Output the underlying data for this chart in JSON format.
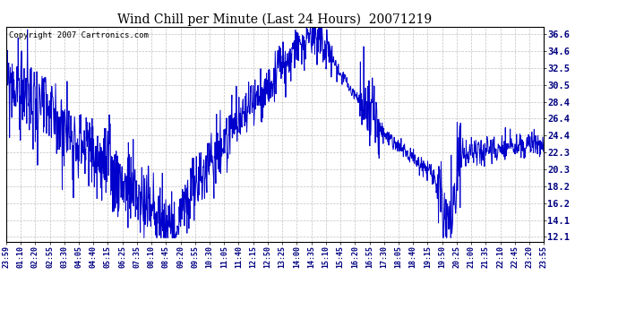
{
  "title": "Wind Chill per Minute (Last 24 Hours)  20071219",
  "copyright": "Copyright 2007 Cartronics.com",
  "line_color": "#0000CC",
  "background_color": "#ffffff",
  "plot_bg_color": "#ffffff",
  "grid_color": "#bbbbbb",
  "yticks": [
    12.1,
    14.1,
    16.2,
    18.2,
    20.3,
    22.3,
    24.4,
    26.4,
    28.4,
    30.5,
    32.5,
    34.6,
    36.6
  ],
  "ylim": [
    11.5,
    37.5
  ],
  "xtick_labels": [
    "23:59",
    "01:10",
    "02:20",
    "02:55",
    "03:30",
    "04:05",
    "04:40",
    "05:15",
    "06:25",
    "07:35",
    "08:10",
    "08:45",
    "09:20",
    "09:55",
    "10:30",
    "11:05",
    "11:40",
    "12:15",
    "12:50",
    "13:25",
    "14:00",
    "14:35",
    "15:10",
    "15:45",
    "16:20",
    "16:55",
    "17:30",
    "18:05",
    "18:40",
    "19:15",
    "19:50",
    "20:25",
    "21:00",
    "21:35",
    "22:10",
    "22:45",
    "23:20",
    "23:55"
  ],
  "seed": 99
}
